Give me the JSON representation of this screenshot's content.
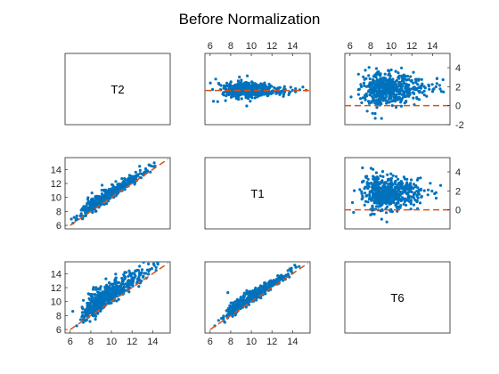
{
  "title": "Before Normalization",
  "colors": {
    "points": "#0072BD",
    "reference": "#D95319",
    "axes": "#262626"
  },
  "chart_data": {
    "type": "scatter",
    "layout": "scatter-matrix",
    "title": "Before Normalization",
    "variables": [
      "T2",
      "T1",
      "T6"
    ],
    "grid": false,
    "panels": [
      {
        "id": "r1c1",
        "kind": "label",
        "label": "T2"
      },
      {
        "id": "r1c2",
        "kind": "ma",
        "xlim": [
          5.5,
          15.7
        ],
        "ylim": [
          -2,
          5.5
        ],
        "xticks": [
          6,
          8,
          10,
          12,
          14
        ],
        "xticks_side": "top",
        "yticks": [],
        "reference_line": {
          "type": "horizontal",
          "y": 1.6
        },
        "cloud": {
          "center_x": 9.0,
          "center_y": 1.6,
          "spread_x": 1.6,
          "spread_y": 0.45
        }
      },
      {
        "id": "r1c3",
        "kind": "ma",
        "xlim": [
          5.5,
          15.7
        ],
        "ylim": [
          -2,
          5.5
        ],
        "xticks": [
          6,
          8,
          10,
          12,
          14
        ],
        "xticks_side": "top",
        "yticks": [
          -2,
          0,
          2,
          4
        ],
        "yticks_side": "right",
        "reference_line": {
          "type": "horizontal",
          "y": 0
        },
        "cloud": {
          "center_x": 9.2,
          "center_y": 1.8,
          "spread_x": 1.6,
          "spread_y": 1.0
        }
      },
      {
        "id": "r2c1",
        "kind": "scatter",
        "xlim": [
          5.5,
          15.7
        ],
        "ylim": [
          5.5,
          15.7
        ],
        "xticks": [],
        "yticks": [
          6,
          8,
          10,
          12,
          14
        ],
        "yticks_side": "left",
        "reference_line": {
          "type": "diagonal"
        },
        "cloud": {
          "center_x": 9.0,
          "center_y": 9.6,
          "spread_x": 1.6,
          "spread_y": 0.6
        }
      },
      {
        "id": "r2c2",
        "kind": "label",
        "label": "T1"
      },
      {
        "id": "r2c3",
        "kind": "ma",
        "xlim": [
          5.5,
          15.7
        ],
        "ylim": [
          -2,
          5.5
        ],
        "xticks": [],
        "yticks": [
          0,
          2,
          4
        ],
        "yticks_side": "right",
        "reference_line": {
          "type": "horizontal",
          "y": 0
        },
        "cloud": {
          "center_x": 9.2,
          "center_y": 1.8,
          "spread_x": 1.6,
          "spread_y": 1.0
        }
      },
      {
        "id": "r3c1",
        "kind": "scatter",
        "xlim": [
          5.5,
          15.7
        ],
        "ylim": [
          5.5,
          15.7
        ],
        "xticks": [
          6,
          8,
          10,
          12,
          14
        ],
        "xticks_side": "bottom",
        "yticks": [
          6,
          8,
          10,
          12,
          14
        ],
        "yticks_side": "left",
        "reference_line": {
          "type": "diagonal"
        },
        "cloud": {
          "center_x": 8.9,
          "center_y": 10.3,
          "spread_x": 1.6,
          "spread_y": 1.1
        }
      },
      {
        "id": "r3c2",
        "kind": "scatter",
        "xlim": [
          5.5,
          15.7
        ],
        "ylim": [
          5.5,
          15.7
        ],
        "xticks": [
          6,
          8,
          10,
          12,
          14
        ],
        "xticks_side": "bottom",
        "yticks": [],
        "reference_line": {
          "type": "diagonal"
        },
        "cloud": {
          "center_x": 9.2,
          "center_y": 9.8,
          "spread_x": 1.6,
          "spread_y": 0.6
        }
      },
      {
        "id": "r3c3",
        "kind": "label",
        "label": "T6"
      }
    ]
  }
}
